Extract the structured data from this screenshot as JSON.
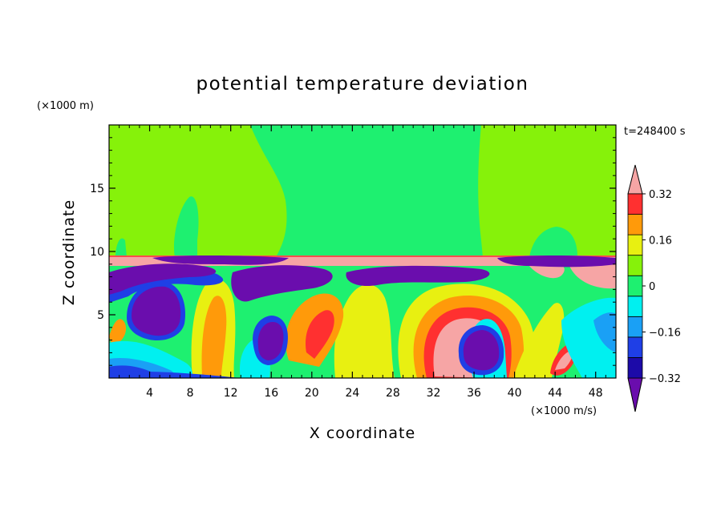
{
  "chart_data": {
    "type": "heatmap",
    "title": "potential temperature deviation",
    "xlabel": "X coordinate",
    "ylabel": "Z coordinate",
    "x_unit": "(×1000 m/s)",
    "y_unit": "(×1000 m)",
    "time_label": "t=248400 s",
    "xlim": [
      0,
      50
    ],
    "ylim": [
      0,
      20
    ],
    "x_ticks": [
      4,
      8,
      12,
      16,
      20,
      24,
      28,
      32,
      36,
      40,
      44,
      48
    ],
    "y_ticks": [
      5,
      10,
      15
    ],
    "colorbar": {
      "labels": [
        "0.32",
        "0.16",
        "0",
        "−0.16",
        "−0.32"
      ],
      "label_values": [
        0.32,
        0.16,
        0,
        -0.16,
        -0.32
      ],
      "levels": [
        -0.4,
        -0.32,
        -0.24,
        -0.16,
        -0.08,
        0,
        0.08,
        0.16,
        0.24,
        0.32,
        0.4
      ],
      "colors": [
        "#6a0dad",
        "#1c0aa8",
        "#1f3fe6",
        "#1aa0f5",
        "#00f0f0",
        "#1ef070",
        "#86f20a",
        "#e8f011",
        "#ff9a0a",
        "#ff3030",
        "#f6a5a5"
      ]
    },
    "regions": [
      {
        "kind": "upper-layer",
        "value": 0.04,
        "z_range": [
          10,
          20
        ]
      },
      {
        "kind": "inversion",
        "value": 0.42,
        "z_range": [
          9.7,
          10
        ]
      },
      {
        "kind": "mixed-layer",
        "value_range": [
          -0.4,
          0.4
        ],
        "z_range": [
          0,
          9.7
        ]
      }
    ]
  },
  "colors": {
    "upper_green": "#86f20a",
    "plume_green": "#1ef070",
    "inversion_pink": "#f6a5a5",
    "cold_purple": "#6a0dad"
  }
}
